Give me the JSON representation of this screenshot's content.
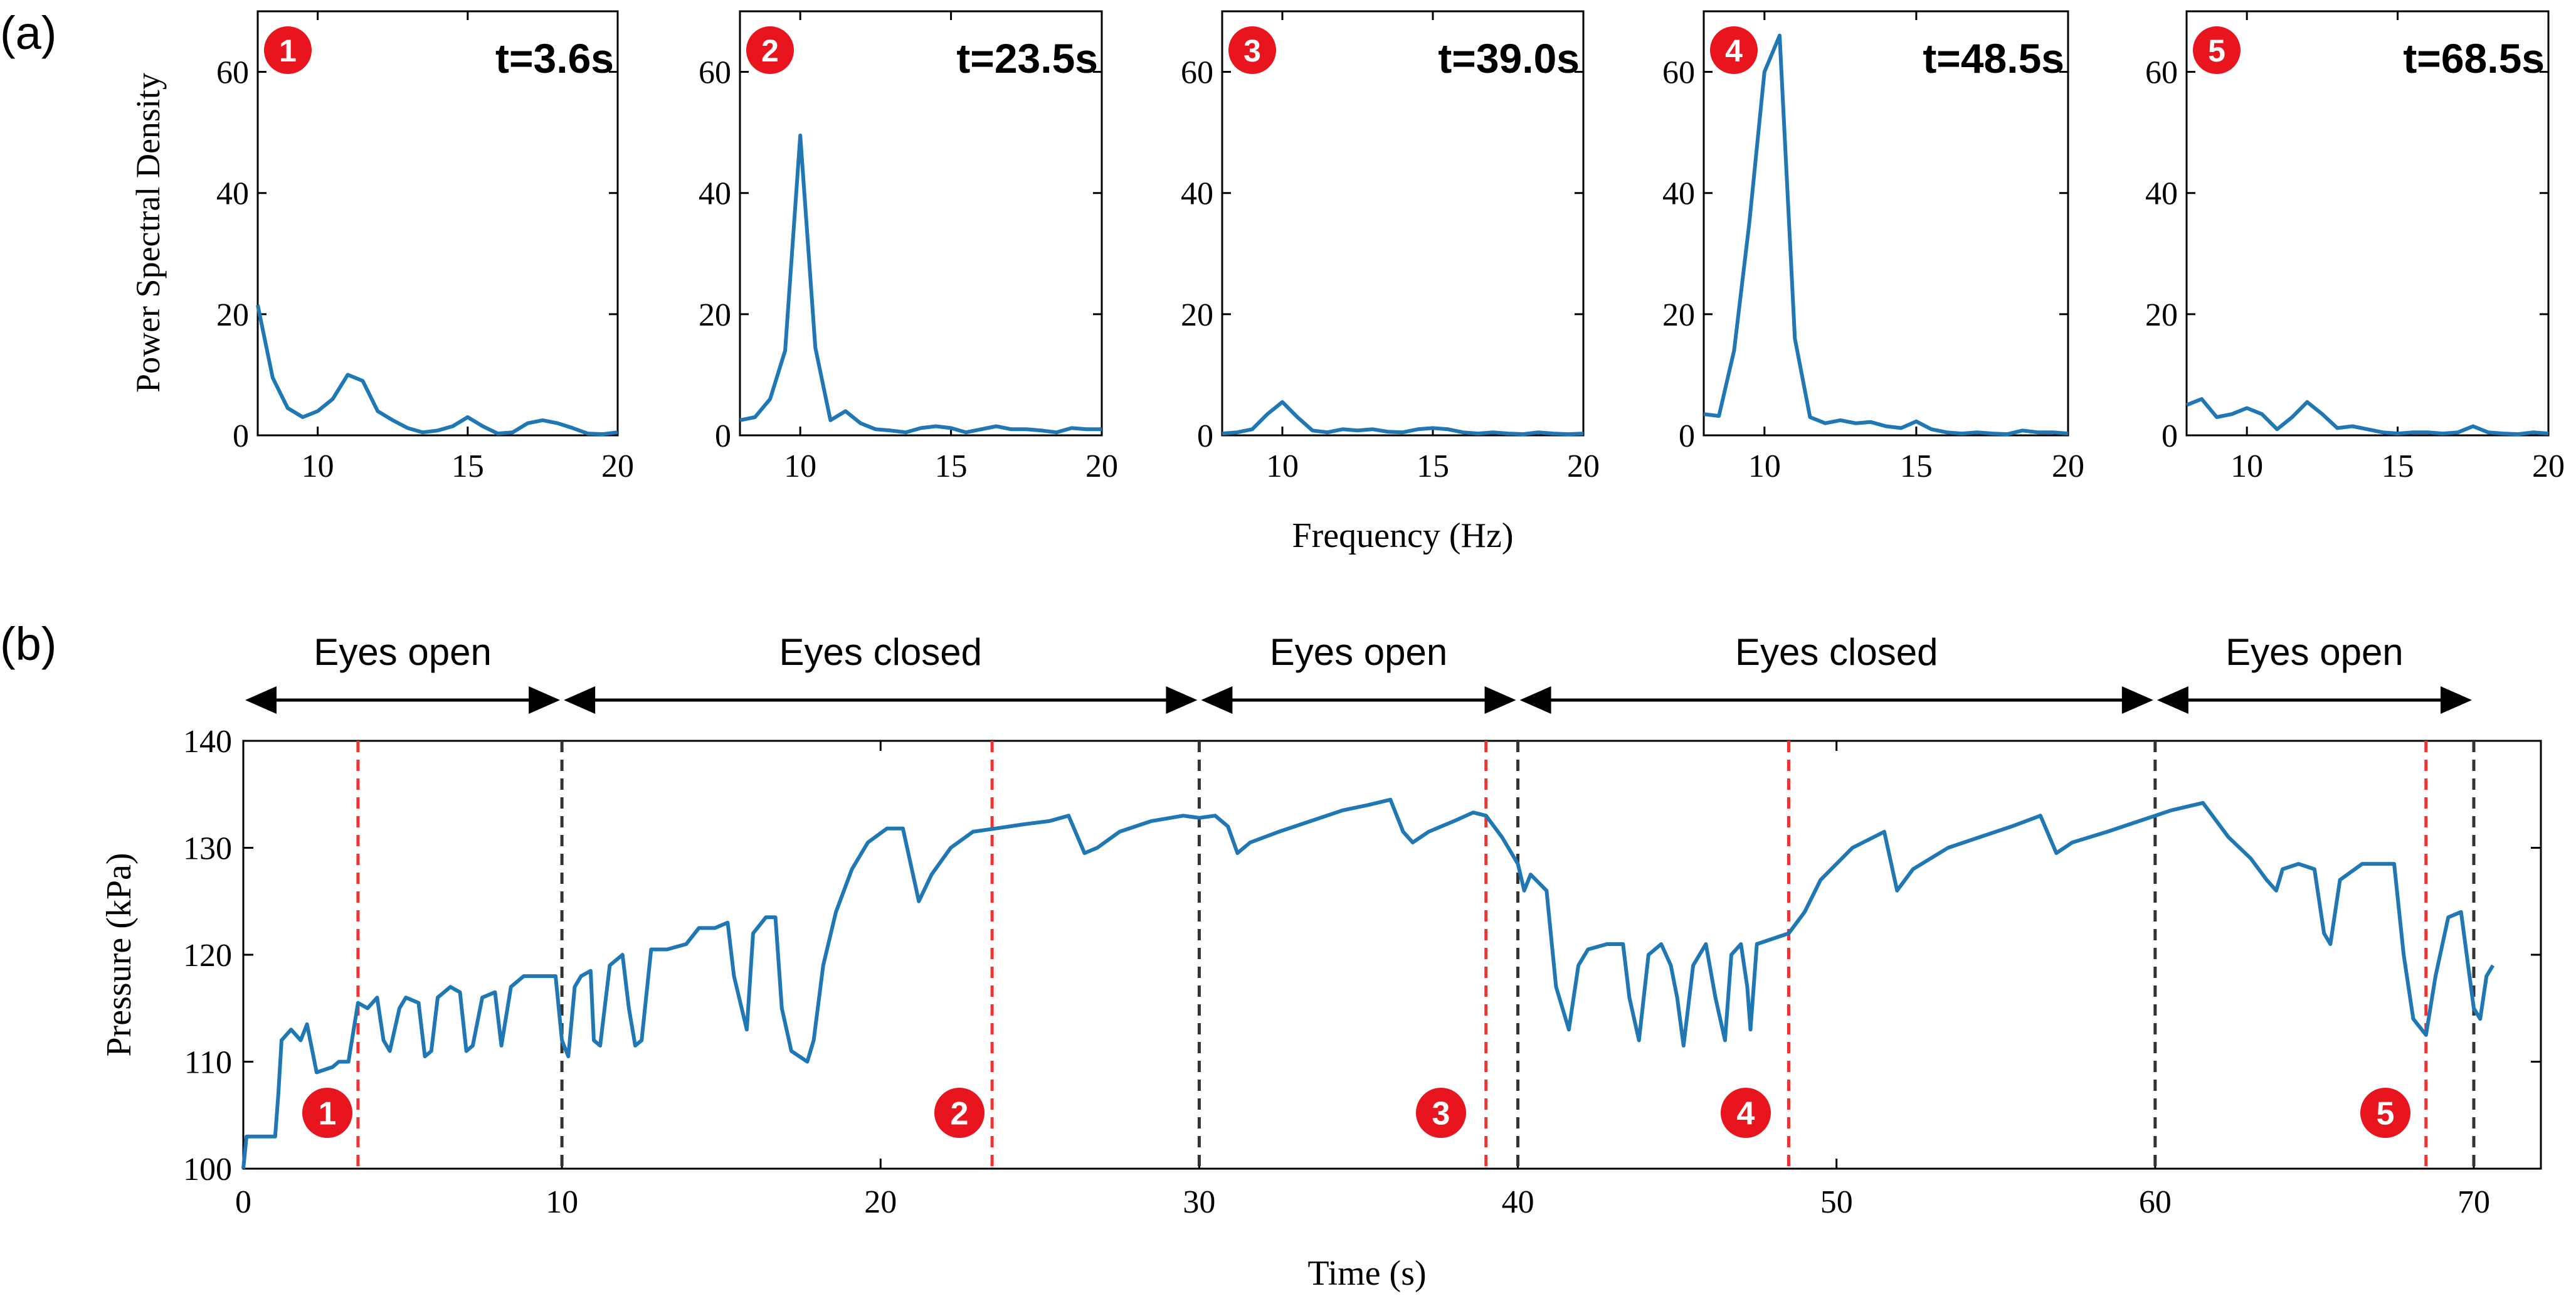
{
  "figure": {
    "panel_a_label": "(a)",
    "panel_b_label": "(b)",
    "colors": {
      "line": "#1f77b4",
      "badge": "#e8141e",
      "marker_red": "#ee3333",
      "marker_black": "#333333",
      "axis": "#000000"
    }
  },
  "chart_data": [
    {
      "type": "line",
      "id": "psd-1",
      "badge": "1",
      "title": "t=3.6s",
      "ylabel": "Power Spectral Density",
      "xlabel": "",
      "xlim": [
        8,
        20
      ],
      "ylim": [
        0,
        70
      ],
      "xticks": [
        10,
        15,
        20
      ],
      "yticks": [
        0,
        20,
        40,
        60
      ],
      "series": [
        {
          "name": "PSD",
          "x": [
            8,
            8.5,
            9,
            9.5,
            10,
            10.5,
            11,
            11.5,
            12,
            12.5,
            13,
            13.5,
            14,
            14.5,
            15,
            15.5,
            16,
            16.5,
            17,
            17.5,
            18,
            18.5,
            19,
            19.5,
            20
          ],
          "y": [
            21.5,
            9.5,
            4.5,
            3.0,
            4.0,
            6.0,
            10.0,
            9.0,
            4.0,
            2.5,
            1.2,
            0.5,
            0.8,
            1.5,
            3.0,
            1.5,
            0.3,
            0.5,
            2.0,
            2.5,
            2.0,
            1.2,
            0.3,
            0.2,
            0.5
          ]
        }
      ]
    },
    {
      "type": "line",
      "id": "psd-2",
      "badge": "2",
      "title": "t=23.5s",
      "ylabel": "",
      "xlabel": "",
      "xlim": [
        8,
        20
      ],
      "ylim": [
        0,
        70
      ],
      "xticks": [
        10,
        15,
        20
      ],
      "yticks": [
        0,
        20,
        40,
        60
      ],
      "series": [
        {
          "name": "PSD",
          "x": [
            8,
            8.5,
            9,
            9.5,
            10,
            10.5,
            11,
            11.5,
            12,
            12.5,
            13,
            13.5,
            14,
            14.5,
            15,
            15.5,
            16,
            16.5,
            17,
            17.5,
            18,
            18.5,
            19,
            19.5,
            20
          ],
          "y": [
            2.5,
            3.0,
            6.0,
            14.0,
            49.5,
            14.5,
            2.5,
            4.0,
            2.0,
            1.0,
            0.8,
            0.5,
            1.2,
            1.5,
            1.2,
            0.5,
            1.0,
            1.5,
            1.0,
            1.0,
            0.8,
            0.5,
            1.2,
            1.0,
            1.0
          ]
        }
      ]
    },
    {
      "type": "line",
      "id": "psd-3",
      "badge": "3",
      "title": "t=39.0s",
      "ylabel": "",
      "xlabel": "Frequency (Hz)",
      "xlim": [
        8,
        20
      ],
      "ylim": [
        0,
        70
      ],
      "xticks": [
        10,
        15,
        20
      ],
      "yticks": [
        0,
        20,
        40,
        60
      ],
      "series": [
        {
          "name": "PSD",
          "x": [
            8,
            8.5,
            9,
            9.5,
            10,
            10.5,
            11,
            11.5,
            12,
            12.5,
            13,
            13.5,
            14,
            14.5,
            15,
            15.5,
            16,
            16.5,
            17,
            17.5,
            18,
            18.5,
            19,
            19.5,
            20
          ],
          "y": [
            0.3,
            0.5,
            1.0,
            3.5,
            5.5,
            3.0,
            0.8,
            0.5,
            1.0,
            0.8,
            1.0,
            0.6,
            0.5,
            1.0,
            1.2,
            1.0,
            0.5,
            0.3,
            0.5,
            0.3,
            0.2,
            0.5,
            0.3,
            0.2,
            0.3
          ]
        }
      ]
    },
    {
      "type": "line",
      "id": "psd-4",
      "badge": "4",
      "title": "t=48.5s",
      "ylabel": "",
      "xlabel": "",
      "xlim": [
        8,
        20
      ],
      "ylim": [
        0,
        70
      ],
      "xticks": [
        10,
        15,
        20
      ],
      "yticks": [
        0,
        20,
        40,
        60
      ],
      "series": [
        {
          "name": "PSD",
          "x": [
            8,
            8.5,
            9,
            9.5,
            10,
            10.5,
            11,
            11.5,
            12,
            12.5,
            13,
            13.5,
            14,
            14.5,
            15,
            15.5,
            16,
            16.5,
            17,
            17.5,
            18,
            18.5,
            19,
            19.5,
            20
          ],
          "y": [
            3.5,
            3.2,
            14.0,
            35.0,
            60.0,
            66.0,
            16.0,
            3.0,
            2.0,
            2.5,
            2.0,
            2.2,
            1.5,
            1.2,
            2.3,
            1.0,
            0.5,
            0.3,
            0.5,
            0.3,
            0.2,
            0.8,
            0.5,
            0.5,
            0.3
          ]
        }
      ]
    },
    {
      "type": "line",
      "id": "psd-5",
      "badge": "5",
      "title": "t=68.5s",
      "ylabel": "",
      "xlabel": "",
      "xlim": [
        8,
        20
      ],
      "ylim": [
        0,
        70
      ],
      "xticks": [
        10,
        15,
        20
      ],
      "yticks": [
        0,
        20,
        40,
        60
      ],
      "series": [
        {
          "name": "PSD",
          "x": [
            8,
            8.5,
            9,
            9.5,
            10,
            10.5,
            11,
            11.5,
            12,
            12.5,
            13,
            13.5,
            14,
            14.5,
            15,
            15.5,
            16,
            16.5,
            17,
            17.5,
            18,
            18.5,
            19,
            19.5,
            20
          ],
          "y": [
            5.0,
            6.0,
            3.0,
            3.5,
            4.5,
            3.5,
            1.0,
            3.0,
            5.5,
            3.5,
            1.2,
            1.5,
            1.0,
            0.5,
            0.3,
            0.5,
            0.5,
            0.3,
            0.5,
            1.5,
            0.5,
            0.3,
            0.2,
            0.5,
            0.3
          ]
        }
      ]
    },
    {
      "type": "line",
      "id": "pressure",
      "title": "",
      "xlabel": "Time (s)",
      "ylabel": "Pressure (kPa)",
      "xlim": [
        0,
        72
      ],
      "ylim": [
        100,
        140
      ],
      "xticks": [
        0,
        10,
        20,
        30,
        40,
        50,
        60,
        70
      ],
      "yticks": [
        100,
        110,
        120,
        130,
        140
      ],
      "phases": [
        {
          "label": "Eyes open",
          "start": 0,
          "end": 10
        },
        {
          "label": "Eyes closed",
          "start": 10,
          "end": 30
        },
        {
          "label": "Eyes open",
          "start": 30,
          "end": 40
        },
        {
          "label": "Eyes closed",
          "start": 40,
          "end": 60
        },
        {
          "label": "Eyes open",
          "start": 60,
          "end": 70
        }
      ],
      "boundaries": [
        10,
        30,
        40,
        60,
        70
      ],
      "markers": [
        {
          "label": "1",
          "t": 3.6
        },
        {
          "label": "2",
          "t": 23.5
        },
        {
          "label": "3",
          "t": 39.0
        },
        {
          "label": "4",
          "t": 48.5
        },
        {
          "label": "5",
          "t": 68.5
        }
      ],
      "series": [
        {
          "name": "Pressure",
          "points": [
            [
              0,
              100
            ],
            [
              0.1,
              103
            ],
            [
              1.0,
              103
            ],
            [
              1.1,
              107
            ],
            [
              1.2,
              112
            ],
            [
              1.5,
              113
            ],
            [
              1.8,
              112
            ],
            [
              2.0,
              113.5
            ],
            [
              2.3,
              109
            ],
            [
              2.8,
              109.5
            ],
            [
              3.0,
              110
            ],
            [
              3.3,
              110
            ],
            [
              3.6,
              115.5
            ],
            [
              3.9,
              115
            ],
            [
              4.2,
              116
            ],
            [
              4.4,
              112
            ],
            [
              4.6,
              111
            ],
            [
              4.9,
              115
            ],
            [
              5.1,
              116
            ],
            [
              5.5,
              115.5
            ],
            [
              5.7,
              110.5
            ],
            [
              5.9,
              111
            ],
            [
              6.1,
              116
            ],
            [
              6.5,
              117
            ],
            [
              6.8,
              116.5
            ],
            [
              7.0,
              111
            ],
            [
              7.2,
              111.5
            ],
            [
              7.5,
              116
            ],
            [
              7.9,
              116.5
            ],
            [
              8.1,
              111.5
            ],
            [
              8.4,
              117
            ],
            [
              8.8,
              118
            ],
            [
              9.4,
              118
            ],
            [
              9.8,
              118
            ],
            [
              10.0,
              112
            ],
            [
              10.2,
              110.5
            ],
            [
              10.4,
              117
            ],
            [
              10.6,
              118
            ],
            [
              10.9,
              118.5
            ],
            [
              11.0,
              112
            ],
            [
              11.2,
              111.5
            ],
            [
              11.5,
              119
            ],
            [
              11.9,
              120
            ],
            [
              12.1,
              115
            ],
            [
              12.3,
              111.5
            ],
            [
              12.5,
              112
            ],
            [
              12.8,
              120.5
            ],
            [
              13.3,
              120.5
            ],
            [
              13.9,
              121
            ],
            [
              14.3,
              122.5
            ],
            [
              14.8,
              122.5
            ],
            [
              15.2,
              123
            ],
            [
              15.4,
              118
            ],
            [
              15.8,
              113
            ],
            [
              16.0,
              122
            ],
            [
              16.4,
              123.5
            ],
            [
              16.7,
              123.5
            ],
            [
              16.9,
              115
            ],
            [
              17.2,
              111
            ],
            [
              17.7,
              110
            ],
            [
              17.9,
              112
            ],
            [
              18.2,
              119
            ],
            [
              18.6,
              124
            ],
            [
              19.1,
              128
            ],
            [
              19.6,
              130.5
            ],
            [
              20.2,
              131.8
            ],
            [
              20.7,
              131.8
            ],
            [
              21.2,
              125
            ],
            [
              21.6,
              127.5
            ],
            [
              22.2,
              130
            ],
            [
              22.9,
              131.5
            ],
            [
              23.6,
              131.8
            ],
            [
              24.5,
              132.2
            ],
            [
              25.3,
              132.5
            ],
            [
              25.9,
              133
            ],
            [
              26.4,
              129.5
            ],
            [
              26.8,
              130
            ],
            [
              27.5,
              131.5
            ],
            [
              28.5,
              132.5
            ],
            [
              29.5,
              133
            ],
            [
              30.0,
              132.8
            ],
            [
              30.5,
              133
            ],
            [
              30.9,
              132
            ],
            [
              31.2,
              129.5
            ],
            [
              31.6,
              130.5
            ],
            [
              32.5,
              131.5
            ],
            [
              33.5,
              132.5
            ],
            [
              34.5,
              133.5
            ],
            [
              35.3,
              134
            ],
            [
              36.0,
              134.5
            ],
            [
              36.4,
              131.5
            ],
            [
              36.7,
              130.5
            ],
            [
              37.2,
              131.5
            ],
            [
              38.0,
              132.5
            ],
            [
              38.6,
              133.3
            ],
            [
              39.0,
              133
            ],
            [
              39.5,
              131
            ],
            [
              40.0,
              128.5
            ],
            [
              40.2,
              126
            ],
            [
              40.4,
              127.5
            ],
            [
              40.9,
              126
            ],
            [
              41.2,
              117
            ],
            [
              41.6,
              113
            ],
            [
              41.9,
              119
            ],
            [
              42.2,
              120.5
            ],
            [
              42.8,
              121
            ],
            [
              43.3,
              121
            ],
            [
              43.5,
              116
            ],
            [
              43.8,
              112
            ],
            [
              44.1,
              120
            ],
            [
              44.5,
              121
            ],
            [
              44.8,
              119
            ],
            [
              45.0,
              116
            ],
            [
              45.2,
              111.5
            ],
            [
              45.5,
              119
            ],
            [
              45.9,
              121
            ],
            [
              46.2,
              116
            ],
            [
              46.5,
              112
            ],
            [
              46.7,
              120
            ],
            [
              47.0,
              121
            ],
            [
              47.2,
              117
            ],
            [
              47.3,
              113
            ],
            [
              47.5,
              121
            ],
            [
              48.5,
              122
            ],
            [
              49.0,
              124
            ],
            [
              49.5,
              127
            ],
            [
              50.5,
              130
            ],
            [
              51.5,
              131.5
            ],
            [
              51.9,
              126
            ],
            [
              52.4,
              128
            ],
            [
              53.5,
              130
            ],
            [
              54.5,
              131
            ],
            [
              55.5,
              132
            ],
            [
              56.4,
              133
            ],
            [
              56.9,
              129.5
            ],
            [
              57.4,
              130.5
            ],
            [
              58.5,
              131.5
            ],
            [
              59.5,
              132.5
            ],
            [
              60.5,
              133.5
            ],
            [
              61.5,
              134.2
            ],
            [
              62.3,
              131
            ],
            [
              63.0,
              129
            ],
            [
              63.5,
              127
            ],
            [
              63.8,
              126
            ],
            [
              64.0,
              128
            ],
            [
              64.5,
              128.5
            ],
            [
              65.0,
              128
            ],
            [
              65.3,
              122
            ],
            [
              65.5,
              121
            ],
            [
              65.8,
              127
            ],
            [
              66.5,
              128.5
            ],
            [
              67.5,
              128.5
            ],
            [
              67.8,
              120
            ],
            [
              68.1,
              114
            ],
            [
              68.5,
              112.5
            ],
            [
              68.8,
              118
            ],
            [
              69.2,
              123.5
            ],
            [
              69.6,
              124
            ],
            [
              70.0,
              115
            ],
            [
              70.2,
              114
            ],
            [
              70.4,
              118
            ],
            [
              70.6,
              119
            ]
          ]
        }
      ]
    }
  ]
}
